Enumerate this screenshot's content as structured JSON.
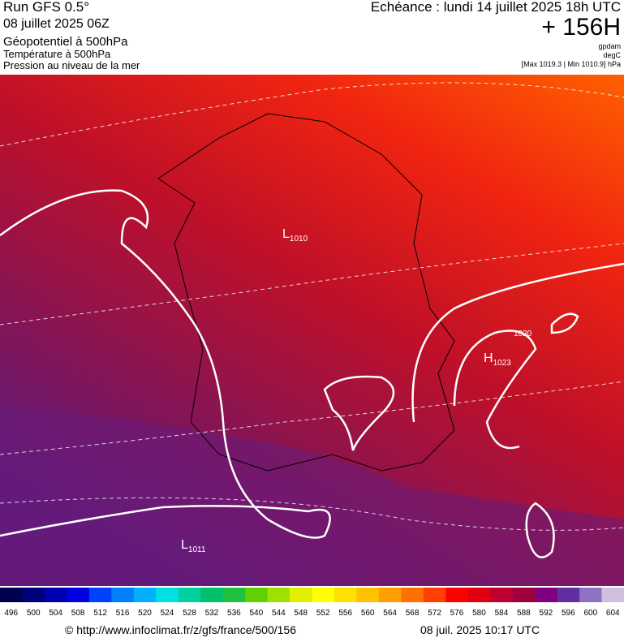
{
  "header": {
    "run": "Run GFS 0.5°",
    "date": "08 juillet 2025 06Z",
    "field1": "Géopotentiel à 500hPa",
    "field2": "Température à 500hPa",
    "field3": "Pression au niveau de la mer",
    "valid": "Echéance : lundi 14 juillet 2025 18h UTC",
    "lead": "+ 156H",
    "unit1": "gpdam",
    "unit2": "degC",
    "range": "[Max 1019.3 | Min 1010.9] hPa"
  },
  "map": {
    "pressure_labels": [
      {
        "symbol": "L",
        "value": "1010"
      },
      {
        "symbol": "H",
        "value": "1023"
      },
      {
        "symbol": "L",
        "value": "1011"
      }
    ],
    "contour_label": "1020"
  },
  "colorbar": {
    "labels": [
      496,
      500,
      504,
      508,
      512,
      516,
      520,
      524,
      528,
      532,
      536,
      540,
      544,
      548,
      552,
      556,
      560,
      564,
      568,
      572,
      576,
      580,
      584,
      588,
      592,
      596,
      600,
      604
    ],
    "colors": [
      "#000050",
      "#00007a",
      "#0000b0",
      "#0000e0",
      "#0040ff",
      "#0080ff",
      "#00b0ff",
      "#00e0e0",
      "#00d0a0",
      "#00c070",
      "#20c040",
      "#60d000",
      "#a0e000",
      "#e0f000",
      "#ffff00",
      "#ffe000",
      "#ffc000",
      "#ffa000",
      "#ff7000",
      "#ff4000",
      "#ff0000",
      "#e00010",
      "#c00030",
      "#a00040",
      "#800080",
      "#6030a0",
      "#9070c0",
      "#d0c0e0"
    ]
  },
  "footer": {
    "url": "© http://www.infoclimat.fr/z/gfs/france/500/156",
    "timestamp": "08 juil. 2025 10:17 UTC"
  }
}
